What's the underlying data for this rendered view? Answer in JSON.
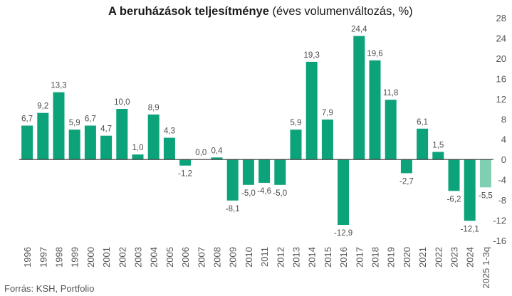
{
  "chart_data": {
    "type": "bar",
    "title_bold": "A beruházások teljesítménye",
    "title_rest": " (éves volumenváltozás, %)",
    "source": "Forrás: KSH, Portfolio",
    "xlabel": "",
    "ylabel": "",
    "ylim": [
      -16,
      28
    ],
    "yticks": [
      28,
      24,
      20,
      16,
      12,
      8,
      4,
      0,
      -4,
      -8,
      -12,
      -16
    ],
    "ytick_labels": [
      "28",
      "24",
      "20",
      "16",
      "12",
      "8",
      "4",
      "0",
      "-4",
      "-8",
      "-12",
      "-16"
    ],
    "categories": [
      "1996",
      "1997",
      "1998",
      "1999",
      "2000",
      "2001",
      "2002",
      "2003",
      "2004",
      "2005",
      "2006",
      "2007",
      "2008",
      "2009",
      "2010",
      "2011",
      "2012",
      "2013",
      "2014",
      "2015",
      "2016",
      "2017",
      "2018",
      "2019",
      "2020",
      "2021",
      "2022",
      "2023",
      "2024",
      "2025 1-3q"
    ],
    "values": [
      6.7,
      9.2,
      13.3,
      5.9,
      6.7,
      4.7,
      10.0,
      1.0,
      8.9,
      4.3,
      -1.2,
      0.0,
      0.4,
      -8.1,
      -5.0,
      -4.6,
      -5.0,
      5.9,
      19.3,
      7.9,
      -12.9,
      24.4,
      19.6,
      11.8,
      -2.7,
      6.1,
      1.5,
      -6.2,
      -12.1,
      -5.5
    ],
    "value_labels": [
      "6,7",
      "9,2",
      "13,3",
      "5,9",
      "6,7",
      "4,7",
      "10,0",
      "1,0",
      "8,9",
      "4,3",
      "-1,2",
      "0,0",
      "0,4",
      "-8,1",
      "-5,0",
      "-4,6",
      "-5,0",
      "5,9",
      "19,3",
      "7,9",
      "-12,9",
      "24,4",
      "19,6",
      "11,8",
      "-2,7",
      "6,1",
      "1,5",
      "-6,2",
      "-12,1",
      "-5,5"
    ],
    "highlight_index": 29,
    "colors": {
      "bar": "#0ca37a",
      "bar_highlight": "#7fd0b3",
      "zero_line": "#333333",
      "text": "#555555"
    },
    "grid": false,
    "legend": "none"
  }
}
